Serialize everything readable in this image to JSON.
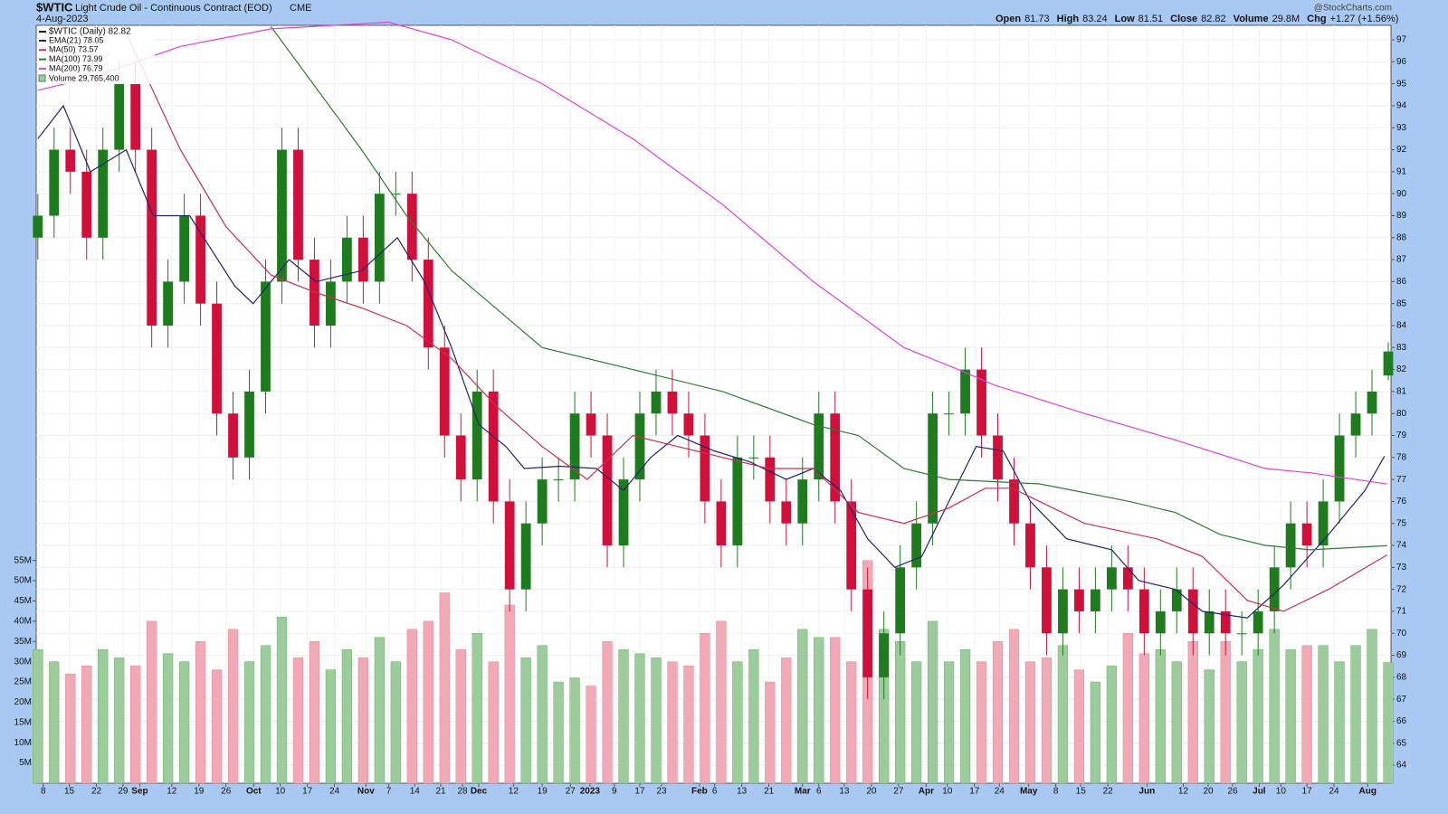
{
  "chart_data": {
    "type": "candlestick",
    "title": "$WTIC",
    "subtitle": "Light Crude Oil - Continuous Contract (EOD)",
    "exchange": "CME",
    "date": "4-Aug-2023",
    "quote": [
      {
        "label": "Open",
        "value": "81.73"
      },
      {
        "label": "High",
        "value": "83.24"
      },
      {
        "label": "Low",
        "value": "81.51"
      },
      {
        "label": "Close",
        "value": "82.82"
      },
      {
        "label": "Volume",
        "value": "29.8M"
      },
      {
        "label": "Chg",
        "value": "+1.27 (+1.56%)"
      }
    ],
    "credit": "@StockCharts.com",
    "price_label": "$WTIC (Daily) 82.82",
    "up_color": "#1e7b1e",
    "down_color": "#d0103a",
    "x": [
      0,
      3,
      6,
      9,
      12,
      15,
      18,
      21,
      24,
      27,
      30,
      33,
      36,
      39,
      42,
      45,
      48,
      51,
      54,
      57,
      60,
      63,
      66,
      69,
      72,
      75,
      78,
      81,
      84,
      87,
      90,
      93,
      96,
      99,
      102,
      105,
      108,
      111,
      114,
      117,
      120,
      123,
      126,
      129,
      132,
      135,
      138,
      141,
      144,
      147,
      150,
      153,
      156,
      159,
      162,
      165,
      168,
      171,
      174,
      177,
      180,
      183,
      186,
      189,
      192,
      195,
      198,
      201,
      204,
      207,
      210,
      213,
      216,
      219,
      222,
      225,
      228,
      231,
      234,
      237,
      240,
      243,
      246,
      249
    ],
    "open": [
      88,
      89,
      92,
      91,
      88,
      92,
      95,
      92,
      84,
      86,
      89,
      85,
      80,
      78,
      81,
      86,
      92,
      87,
      84,
      86,
      88,
      86,
      90,
      90,
      87,
      83,
      79,
      77,
      81,
      76,
      72,
      75,
      77,
      77,
      80,
      79,
      74,
      77,
      80,
      81,
      80,
      79,
      76,
      74,
      78,
      78,
      76,
      75,
      77,
      80,
      76,
      72,
      68,
      70,
      73,
      75,
      80,
      80,
      82,
      79,
      77,
      75,
      73,
      70,
      72,
      71,
      72,
      73,
      72,
      70,
      71,
      72,
      70,
      71,
      70,
      70,
      71,
      73,
      75,
      74,
      76,
      79,
      80,
      81.73
    ],
    "high": [
      90,
      93,
      93,
      92,
      93,
      96,
      96,
      93,
      87,
      90,
      90,
      86,
      81,
      82,
      87,
      93,
      93,
      88,
      87,
      89,
      89,
      91,
      91,
      91,
      88,
      84,
      80,
      82,
      82,
      77,
      76,
      78,
      78,
      81,
      81,
      80,
      78,
      81,
      82,
      82,
      81,
      80,
      77,
      79,
      79,
      79,
      77,
      78,
      81,
      81,
      77,
      73,
      71,
      74,
      76,
      81,
      81,
      83,
      83,
      80,
      78,
      76,
      74,
      73,
      73,
      73,
      74,
      74,
      73,
      72,
      73,
      73,
      72,
      72,
      71,
      72,
      74,
      76,
      76,
      77,
      80,
      81,
      82,
      83.24
    ],
    "low": [
      87,
      88,
      90,
      87,
      87,
      91,
      91,
      83,
      83,
      85,
      84,
      79,
      77,
      77,
      80,
      85,
      86,
      83,
      83,
      85,
      85,
      85,
      89,
      86,
      82,
      78,
      76,
      76,
      75,
      71,
      71,
      74,
      76,
      76,
      78,
      73,
      73,
      76,
      79,
      79,
      78,
      75,
      73,
      73,
      77,
      75,
      74,
      74,
      76,
      75,
      71,
      67,
      67,
      69,
      72,
      74,
      79,
      79,
      78,
      76,
      74,
      72,
      69,
      69,
      70,
      70,
      71,
      71,
      69,
      69,
      70,
      69,
      69,
      69,
      69,
      69,
      70,
      72,
      73,
      73,
      75,
      78,
      79,
      81.51
    ],
    "close": [
      89,
      92,
      91,
      88,
      92,
      95,
      92,
      84,
      86,
      89,
      85,
      80,
      78,
      81,
      86,
      92,
      87,
      84,
      86,
      88,
      86,
      90,
      90,
      87,
      83,
      79,
      77,
      81,
      76,
      72,
      75,
      77,
      77,
      80,
      79,
      74,
      77,
      80,
      81,
      80,
      79,
      76,
      74,
      78,
      78,
      76,
      75,
      77,
      80,
      76,
      72,
      68,
      70,
      73,
      75,
      80,
      80,
      82,
      79,
      77,
      75,
      73,
      70,
      72,
      71,
      72,
      73,
      72,
      70,
      71,
      72,
      70,
      71,
      70,
      70,
      71,
      73,
      75,
      74,
      76,
      79,
      80,
      81,
      82.82
    ],
    "volume": {
      "name": "Volume 29,765,400",
      "up_color": "#9ccc9c",
      "down_color": "#f2a9b6",
      "values": [
        33,
        30,
        27,
        29,
        33,
        31,
        29,
        40,
        32,
        30,
        35,
        28,
        38,
        30,
        34,
        41,
        31,
        35,
        28,
        33,
        31,
        36,
        30,
        38,
        40,
        47,
        33,
        37,
        30,
        44,
        31,
        34,
        25,
        26,
        24,
        35,
        33,
        32,
        31,
        30,
        29,
        37,
        40,
        30,
        33,
        25,
        31,
        38,
        36,
        36,
        30,
        55,
        38,
        35,
        30,
        40,
        30,
        33,
        30,
        35,
        38,
        30,
        31,
        34,
        28,
        25,
        29,
        37,
        32,
        33,
        30,
        35,
        28,
        35,
        30,
        33,
        38,
        33,
        34,
        34,
        30,
        34,
        38,
        29.8
      ],
      "ylim": [
        0,
        187.1
      ],
      "yticks": [
        {
          "value": 5,
          "label": "5M"
        },
        {
          "value": 10,
          "label": "10M"
        },
        {
          "value": 15,
          "label": "15M"
        },
        {
          "value": 20,
          "label": "20M"
        },
        {
          "value": 25,
          "label": "25M"
        },
        {
          "value": 30,
          "label": "30M"
        },
        {
          "value": 35,
          "label": "35M"
        },
        {
          "value": 40,
          "label": "40M"
        },
        {
          "value": 45,
          "label": "45M"
        },
        {
          "value": 50,
          "label": "50M"
        },
        {
          "value": 55,
          "label": "55M"
        }
      ]
    },
    "lines": [
      {
        "name": "EMA(21) 78.05",
        "color": "#23236e",
        "x": [
          0,
          4.7,
          9.7,
          16.3,
          21.3,
          28,
          36.3,
          39.7,
          46.3,
          51.3,
          59.7,
          66.3,
          71.3,
          76.3,
          81.3,
          86.3,
          89.7,
          96.3,
          103,
          108,
          113,
          118,
          124.7,
          131.3,
          138,
          143,
          148,
          153,
          158,
          163,
          168,
          173,
          178,
          183,
          189.7,
          198,
          203,
          209.7,
          214.7,
          223,
          229.7,
          238,
          244.7,
          248.3
        ],
        "values": [
          92.5,
          94,
          91,
          92,
          89,
          89,
          85.8,
          85,
          87,
          86,
          86.5,
          88,
          86,
          83,
          79.5,
          78.5,
          77.5,
          77.6,
          77.5,
          76.5,
          78,
          79,
          78.3,
          77.8,
          77,
          77.5,
          76.5,
          74.3,
          73,
          73.5,
          76,
          78.5,
          78.3,
          76,
          74.3,
          73.8,
          72.4,
          72,
          71,
          70.7,
          72.2,
          74.5,
          76.5,
          78.05
        ]
      },
      {
        "name": "MA(50) 73.57",
        "color": "#c8304e",
        "x": [
          16.3,
          26.3,
          34.7,
          43,
          51.3,
          59.7,
          68,
          76.3,
          84.7,
          93,
          101.3,
          109.7,
          118,
          126.3,
          134.7,
          143,
          151.3,
          159.7,
          168,
          174.7,
          179.7,
          193,
          206.3,
          214.7,
          223,
          229.7,
          238,
          248.8
        ],
        "values": [
          97.3,
          92,
          88.5,
          86.3,
          85.5,
          84.8,
          84,
          82.5,
          80.3,
          78.5,
          77,
          79,
          78.5,
          78,
          77.5,
          77.5,
          75.5,
          75,
          75.7,
          76.6,
          76.6,
          75,
          74.3,
          73.5,
          71.5,
          71,
          72,
          73.57
        ]
      },
      {
        "name": "MA(100) 73.99",
        "color": "#2e7d32",
        "x": [
          43,
          59.7,
          68,
          76.3,
          93,
          109.7,
          126.3,
          143,
          151.3,
          159.7,
          168,
          184.7,
          201.3,
          209.7,
          218,
          226.3,
          234.7,
          248.8
        ],
        "values": [
          97.6,
          92,
          89,
          86.5,
          83,
          82,
          81,
          79.5,
          79,
          77.5,
          77,
          76.8,
          76,
          75.5,
          74.5,
          74,
          73.8,
          73.99
        ]
      },
      {
        "name": "MA(200) 76.79",
        "color": "#e040d8",
        "x": [
          0,
          10,
          26.3,
          43,
          64.7,
          76.3,
          93,
          109.7,
          126.3,
          143,
          159.7,
          169.7,
          176.3,
          193,
          209.7,
          226.3,
          234.7,
          248.8
        ],
        "values": [
          94.7,
          95.3,
          96.7,
          97.5,
          97.8,
          97,
          95,
          92.5,
          89.5,
          86,
          83,
          82,
          81.3,
          80,
          78.8,
          77.5,
          77.3,
          76.79
        ]
      }
    ],
    "xlim": [
      -0.3,
      249.5
    ],
    "ylim": [
      63.18,
      97.66
    ],
    "yticks": [
      64,
      65,
      66,
      67,
      68,
      69,
      70,
      71,
      72,
      73,
      74,
      75,
      76,
      77,
      78,
      79,
      80,
      81,
      82,
      83,
      84,
      85,
      86,
      87,
      88,
      89,
      90,
      91,
      92,
      93,
      94,
      95,
      96,
      97
    ],
    "xticks": [
      {
        "value": 1,
        "label": "8"
      },
      {
        "value": 5.8,
        "label": "15"
      },
      {
        "value": 10.8,
        "label": "22"
      },
      {
        "value": 15.7,
        "label": "29"
      },
      {
        "value": 18.8,
        "label": "Sep"
      },
      {
        "value": 24.7,
        "label": "12"
      },
      {
        "value": 29.7,
        "label": "19"
      },
      {
        "value": 34.7,
        "label": "26"
      },
      {
        "value": 39.8,
        "label": "Oct"
      },
      {
        "value": 44.7,
        "label": "10"
      },
      {
        "value": 49.7,
        "label": "17"
      },
      {
        "value": 54.7,
        "label": "24"
      },
      {
        "value": 60.5,
        "label": "Nov"
      },
      {
        "value": 64.7,
        "label": "7"
      },
      {
        "value": 69.5,
        "label": "14"
      },
      {
        "value": 74.3,
        "label": "21"
      },
      {
        "value": 78.3,
        "label": "28"
      },
      {
        "value": 81.3,
        "label": "Dec"
      },
      {
        "value": 87.7,
        "label": "12"
      },
      {
        "value": 93,
        "label": "19"
      },
      {
        "value": 98.2,
        "label": "27"
      },
      {
        "value": 101.8,
        "label": "2023"
      },
      {
        "value": 106.3,
        "label": "9"
      },
      {
        "value": 111,
        "label": "17"
      },
      {
        "value": 115,
        "label": "23"
      },
      {
        "value": 122,
        "label": "Feb"
      },
      {
        "value": 124.8,
        "label": "6"
      },
      {
        "value": 129.8,
        "label": "13"
      },
      {
        "value": 134.8,
        "label": "21"
      },
      {
        "value": 141,
        "label": "Mar"
      },
      {
        "value": 144,
        "label": "6"
      },
      {
        "value": 148.7,
        "label": "13"
      },
      {
        "value": 153.7,
        "label": "20"
      },
      {
        "value": 158.7,
        "label": "27"
      },
      {
        "value": 163.8,
        "label": "Apr"
      },
      {
        "value": 167.7,
        "label": "10"
      },
      {
        "value": 172.7,
        "label": "17"
      },
      {
        "value": 177.3,
        "label": "24"
      },
      {
        "value": 182.7,
        "label": "May"
      },
      {
        "value": 187.7,
        "label": "8"
      },
      {
        "value": 192.3,
        "label": "15"
      },
      {
        "value": 197.3,
        "label": "22"
      },
      {
        "value": 204.5,
        "label": "Jun"
      },
      {
        "value": 211.2,
        "label": "12"
      },
      {
        "value": 215.8,
        "label": "20"
      },
      {
        "value": 220.3,
        "label": "26"
      },
      {
        "value": 225.2,
        "label": "Jul"
      },
      {
        "value": 229.2,
        "label": "10"
      },
      {
        "value": 234,
        "label": "17"
      },
      {
        "value": 239,
        "label": "24"
      },
      {
        "value": 245.2,
        "label": "Aug"
      }
    ],
    "grid": true
  }
}
